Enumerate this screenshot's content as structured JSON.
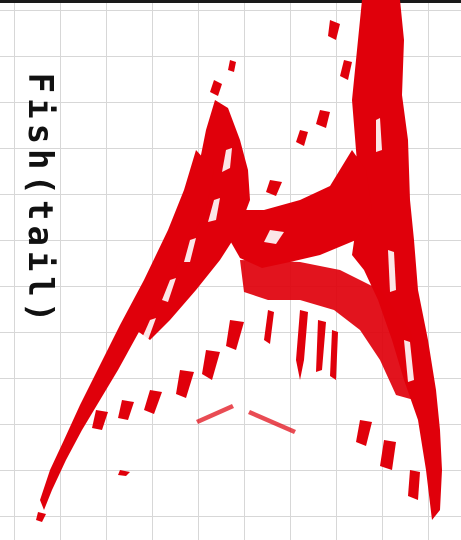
{
  "title": "Fish(tail)",
  "colors": {
    "ink": "#e0000b",
    "text": "#111111",
    "grid": "#d7d7d7",
    "paper": "#ffffff"
  },
  "figure": "red-splatter-tail-shape"
}
